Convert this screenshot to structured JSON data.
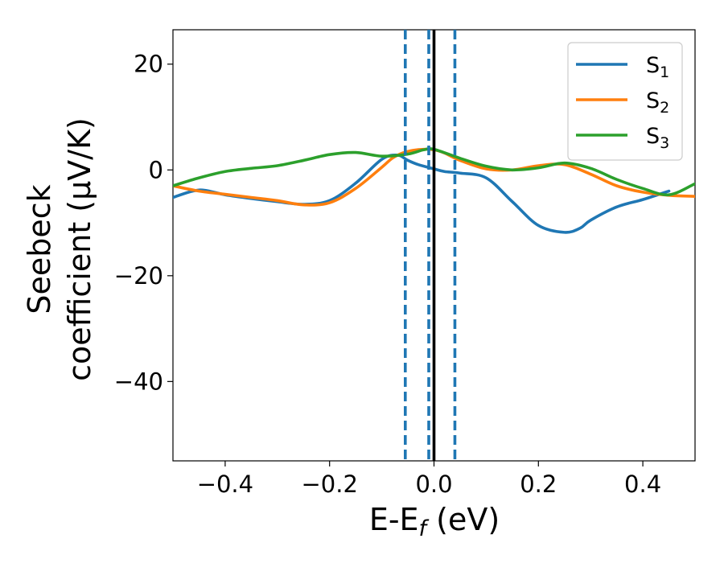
{
  "chart_data": {
    "type": "line",
    "xlabel": "E-E",
    "xlabel_sub": "f",
    "xlabel_unit": " (eV)",
    "ylabel_line1": "Seebeck",
    "ylabel_line2": "coefficient  (μV/K)",
    "xlim": [
      -0.5,
      0.5
    ],
    "ylim": [
      -55,
      26.5
    ],
    "xticks": [
      -0.4,
      -0.2,
      0.0,
      0.2,
      0.4
    ],
    "xtick_labels": [
      "−0.4",
      "−0.2",
      "0.0",
      "0.2",
      "0.4"
    ],
    "yticks": [
      -40,
      -20,
      0,
      20
    ],
    "ytick_labels": [
      "−40",
      "−20",
      "0",
      "20"
    ],
    "grid": false,
    "legend_position": "top-right",
    "vertical_lines": [
      {
        "x": -0.055,
        "style": "dashed",
        "color": "#1f77b4"
      },
      {
        "x": -0.01,
        "style": "dashed",
        "color": "#1f77b4"
      },
      {
        "x": 0.0,
        "style": "solid",
        "color": "#000000"
      },
      {
        "x": 0.04,
        "style": "dashed",
        "color": "#1f77b4"
      }
    ],
    "series": [
      {
        "name": "S",
        "sub": "1",
        "color": "#1f77b4",
        "x": [
          -0.5,
          -0.45,
          -0.4,
          -0.35,
          -0.3,
          -0.25,
          -0.2,
          -0.15,
          -0.1,
          -0.07,
          -0.05,
          -0.03,
          0.0,
          0.02,
          0.05,
          0.1,
          0.15,
          0.2,
          0.25,
          0.28,
          0.3,
          0.35,
          0.4,
          0.45
        ],
        "y": [
          -5.2,
          -3.8,
          -4.7,
          -5.4,
          -6.0,
          -6.5,
          -5.8,
          -2.5,
          2.0,
          2.8,
          1.8,
          1.0,
          0.2,
          -0.3,
          -0.6,
          -1.5,
          -6.0,
          -10.5,
          -11.8,
          -11.0,
          -9.5,
          -7.0,
          -5.6,
          -4.0
        ]
      },
      {
        "name": "S",
        "sub": "2",
        "color": "#ff7f0e",
        "x": [
          -0.5,
          -0.45,
          -0.4,
          -0.35,
          -0.3,
          -0.25,
          -0.2,
          -0.15,
          -0.1,
          -0.08,
          -0.06,
          -0.04,
          -0.02,
          0.0,
          0.02,
          0.05,
          0.1,
          0.15,
          0.2,
          0.25,
          0.3,
          0.35,
          0.4,
          0.45,
          0.5
        ],
        "y": [
          -3.0,
          -4.0,
          -4.6,
          -5.2,
          -5.8,
          -6.6,
          -6.2,
          -3.5,
          0.5,
          2.2,
          3.2,
          3.7,
          3.9,
          3.8,
          3.2,
          1.8,
          0.2,
          0.0,
          0.8,
          1.0,
          -0.8,
          -3.0,
          -4.2,
          -4.8,
          -5.0
        ]
      },
      {
        "name": "S",
        "sub": "3",
        "color": "#2ca02c",
        "x": [
          -0.5,
          -0.45,
          -0.4,
          -0.35,
          -0.3,
          -0.25,
          -0.2,
          -0.15,
          -0.1,
          -0.05,
          -0.02,
          0.0,
          0.05,
          0.1,
          0.15,
          0.2,
          0.25,
          0.3,
          0.35,
          0.4,
          0.45,
          0.5
        ],
        "y": [
          -3.0,
          -1.5,
          -0.3,
          0.3,
          0.8,
          1.8,
          2.9,
          3.3,
          2.6,
          3.0,
          3.8,
          3.9,
          2.2,
          0.7,
          0.0,
          0.4,
          1.3,
          0.3,
          -1.8,
          -3.5,
          -4.7,
          -2.6
        ]
      }
    ]
  }
}
